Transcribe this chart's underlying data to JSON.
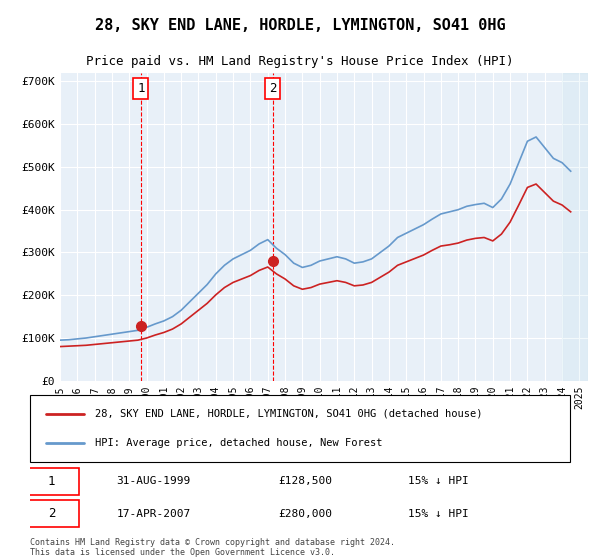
{
  "title": "28, SKY END LANE, HORDLE, LYMINGTON, SO41 0HG",
  "subtitle": "Price paid vs. HM Land Registry's House Price Index (HPI)",
  "ylabel": "",
  "background_color": "#ffffff",
  "plot_bg_color": "#e8f0f8",
  "grid_color": "#ffffff",
  "ylim": [
    0,
    720000
  ],
  "yticks": [
    0,
    100000,
    200000,
    300000,
    400000,
    500000,
    600000,
    700000
  ],
  "ytick_labels": [
    "£0",
    "£100K",
    "£200K",
    "£300K",
    "£400K",
    "£500K",
    "£600K",
    "£700K"
  ],
  "hpi_color": "#6699cc",
  "price_color": "#cc2222",
  "sale1_date": "31-AUG-1999",
  "sale1_price": 128500,
  "sale1_label": "1",
  "sale1_hpi_note": "15% ↓ HPI",
  "sale2_date": "17-APR-2007",
  "sale2_price": 280000,
  "sale2_label": "2",
  "sale2_hpi_note": "15% ↓ HPI",
  "legend_property": "28, SKY END LANE, HORDLE, LYMINGTON, SO41 0HG (detached house)",
  "legend_hpi": "HPI: Average price, detached house, New Forest",
  "footnote": "Contains HM Land Registry data © Crown copyright and database right 2024.\nThis data is licensed under the Open Government Licence v3.0.",
  "sale1_x": 1999.67,
  "sale2_x": 2007.3,
  "hpi_years": [
    1995,
    1995.5,
    1996,
    1996.5,
    1997,
    1997.5,
    1998,
    1998.5,
    1999,
    1999.5,
    2000,
    2000.5,
    2001,
    2001.5,
    2002,
    2002.5,
    2003,
    2003.5,
    2004,
    2004.5,
    2005,
    2005.5,
    2006,
    2006.5,
    2007,
    2007.5,
    2008,
    2008.5,
    2009,
    2009.5,
    2010,
    2010.5,
    2011,
    2011.5,
    2012,
    2012.5,
    2013,
    2013.5,
    2014,
    2014.5,
    2015,
    2015.5,
    2016,
    2016.5,
    2017,
    2017.5,
    2018,
    2018.5,
    2019,
    2019.5,
    2020,
    2020.5,
    2021,
    2021.5,
    2022,
    2022.5,
    2023,
    2023.5,
    2024,
    2024.5
  ],
  "hpi_values": [
    95000,
    96000,
    98000,
    100000,
    103000,
    106000,
    109000,
    112000,
    115000,
    118000,
    125000,
    133000,
    140000,
    150000,
    165000,
    185000,
    205000,
    225000,
    250000,
    270000,
    285000,
    295000,
    305000,
    320000,
    330000,
    310000,
    295000,
    275000,
    265000,
    270000,
    280000,
    285000,
    290000,
    285000,
    275000,
    278000,
    285000,
    300000,
    315000,
    335000,
    345000,
    355000,
    365000,
    378000,
    390000,
    395000,
    400000,
    408000,
    412000,
    415000,
    405000,
    425000,
    460000,
    510000,
    560000,
    570000,
    545000,
    520000,
    510000,
    490000
  ],
  "price_years": [
    1995,
    1995.5,
    1996,
    1996.5,
    1997,
    1997.5,
    1998,
    1998.5,
    1999,
    1999.5,
    2000,
    2000.5,
    2001,
    2001.5,
    2002,
    2002.5,
    2003,
    2003.5,
    2004,
    2004.5,
    2005,
    2005.5,
    2006,
    2006.5,
    2007,
    2007.5,
    2008,
    2008.5,
    2009,
    2009.5,
    2010,
    2010.5,
    2011,
    2011.5,
    2012,
    2012.5,
    2013,
    2013.5,
    2014,
    2014.5,
    2015,
    2015.5,
    2016,
    2016.5,
    2017,
    2017.5,
    2018,
    2018.5,
    2019,
    2019.5,
    2020,
    2020.5,
    2021,
    2021.5,
    2022,
    2022.5,
    2023,
    2023.5,
    2024,
    2024.5
  ],
  "price_values": [
    80000,
    81000,
    82000,
    83000,
    85000,
    87000,
    89000,
    91000,
    93000,
    95000,
    100000,
    107000,
    113000,
    121000,
    133000,
    149000,
    165000,
    181000,
    201000,
    218000,
    230000,
    238000,
    246000,
    258000,
    266000,
    250000,
    238000,
    222000,
    214000,
    218000,
    226000,
    230000,
    234000,
    230000,
    222000,
    224000,
    230000,
    242000,
    254000,
    270000,
    278000,
    286000,
    294000,
    305000,
    315000,
    318000,
    322000,
    329000,
    333000,
    335000,
    327000,
    343000,
    371000,
    411000,
    452000,
    460000,
    440000,
    420000,
    411000,
    395000
  ]
}
